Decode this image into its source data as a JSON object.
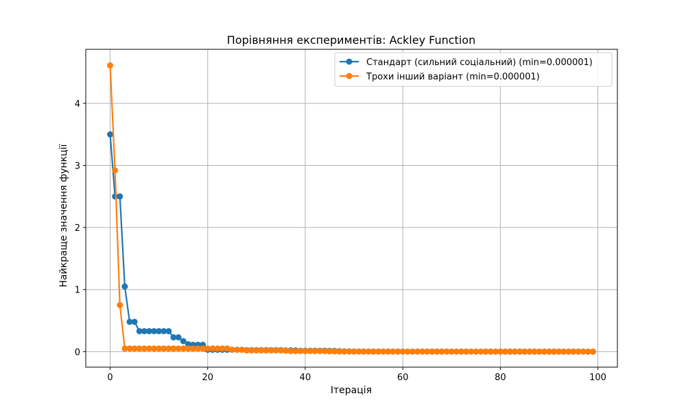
{
  "chart_data": {
    "type": "line",
    "title": "Порівняння експериментів: Ackley Function",
    "xlabel": "Ітерація",
    "ylabel": "Найкраще значення функції",
    "xlim": [
      -5,
      104
    ],
    "ylim": [
      -0.25,
      4.87
    ],
    "xticks": [
      0,
      20,
      40,
      60,
      80,
      100
    ],
    "yticks": [
      0,
      1,
      2,
      3,
      4
    ],
    "grid": true,
    "legend_position": "top-right",
    "series": [
      {
        "name": "Стандарт (сильний соціальний) (min=0.000001)",
        "color": "#1f77b4",
        "x": [
          0,
          1,
          2,
          3,
          4,
          5,
          6,
          7,
          8,
          9,
          10,
          11,
          12,
          13,
          14,
          15,
          16,
          17,
          18,
          19,
          20,
          21,
          22,
          23,
          24,
          25,
          26,
          27,
          28,
          29,
          30,
          31,
          32,
          33,
          34,
          35,
          36,
          37,
          38,
          39,
          40,
          41,
          42,
          43,
          44,
          45,
          46,
          47,
          48,
          49,
          50,
          51,
          52,
          53,
          54,
          55,
          56,
          57,
          58,
          59,
          60,
          61,
          62,
          63,
          64,
          65,
          66,
          67,
          68,
          69,
          70,
          71,
          72,
          73,
          74,
          75,
          76,
          77,
          78,
          79,
          80,
          81,
          82,
          83,
          84,
          85,
          86,
          87,
          88,
          89,
          90,
          91,
          92,
          93,
          94,
          95,
          96,
          97,
          98,
          99
        ],
        "y": [
          3.5,
          2.5,
          2.5,
          1.05,
          0.48,
          0.48,
          0.33,
          0.33,
          0.33,
          0.33,
          0.33,
          0.33,
          0.33,
          0.23,
          0.23,
          0.17,
          0.12,
          0.11,
          0.11,
          0.11,
          0.03,
          0.03,
          0.03,
          0.03,
          0.03,
          0.03,
          0.03,
          0.03,
          0.025,
          0.025,
          0.025,
          0.025,
          0.025,
          0.025,
          0.025,
          0.025,
          0.02,
          0.02,
          0.02,
          0.015,
          0.015,
          0.015,
          0.015,
          0.015,
          0.015,
          0.012,
          0.012,
          0.008,
          0.005,
          0.005,
          0.003,
          0.003,
          0.002,
          0.002,
          0.002,
          0.002,
          0.002,
          0.002,
          0.001,
          0.001,
          0.001,
          0.001,
          0.001,
          0.001,
          0.001,
          0.001,
          0.001,
          0.001,
          0.001,
          0.001,
          0.001,
          0.001,
          0.001,
          0.001,
          0.001,
          0.001,
          0.001,
          0.001,
          0.001,
          0.001,
          0.0005,
          0.0005,
          0.0005,
          0.0005,
          0.0005,
          0.0005,
          0.0005,
          0.0005,
          0.0005,
          0.0005,
          0.0005,
          0.0005,
          0.0005,
          0.0005,
          0.0005,
          0.0005,
          0.0005,
          0.0005,
          1e-06,
          1e-06
        ]
      },
      {
        "name": "Трохи інший варіант (min=0.000001)",
        "color": "#ff7f0e",
        "x": [
          0,
          1,
          2,
          3,
          4,
          5,
          6,
          7,
          8,
          9,
          10,
          11,
          12,
          13,
          14,
          15,
          16,
          17,
          18,
          19,
          20,
          21,
          22,
          23,
          24,
          25,
          26,
          27,
          28,
          29,
          30,
          31,
          32,
          33,
          34,
          35,
          36,
          37,
          38,
          39,
          40,
          41,
          42,
          43,
          44,
          45,
          46,
          47,
          48,
          49,
          50,
          51,
          52,
          53,
          54,
          55,
          56,
          57,
          58,
          59,
          60,
          61,
          62,
          63,
          64,
          65,
          66,
          67,
          68,
          69,
          70,
          71,
          72,
          73,
          74,
          75,
          76,
          77,
          78,
          79,
          80,
          81,
          82,
          83,
          84,
          85,
          86,
          87,
          88,
          89,
          90,
          91,
          92,
          93,
          94,
          95,
          96,
          97,
          98,
          99
        ],
        "y": [
          4.61,
          2.92,
          0.75,
          0.05,
          0.05,
          0.05,
          0.05,
          0.05,
          0.05,
          0.05,
          0.05,
          0.05,
          0.05,
          0.05,
          0.05,
          0.05,
          0.05,
          0.05,
          0.05,
          0.05,
          0.05,
          0.05,
          0.05,
          0.05,
          0.05,
          0.03,
          0.03,
          0.03,
          0.02,
          0.02,
          0.02,
          0.02,
          0.02,
          0.02,
          0.02,
          0.02,
          0.015,
          0.01,
          0.01,
          0.01,
          0.01,
          0.01,
          0.01,
          0.01,
          0.008,
          0.005,
          0.005,
          0.003,
          0.002,
          0.002,
          0.002,
          0.002,
          0.002,
          0.001,
          0.001,
          0.001,
          0.001,
          0.001,
          0.001,
          0.001,
          0.001,
          0.001,
          0.001,
          0.001,
          0.001,
          0.001,
          0.001,
          0.001,
          0.001,
          0.001,
          0.001,
          0.001,
          0.001,
          0.001,
          0.001,
          0.001,
          0.001,
          0.001,
          0.0005,
          0.0005,
          0.0005,
          0.0005,
          0.0005,
          0.0005,
          0.0005,
          0.0005,
          0.0005,
          0.0005,
          0.0005,
          0.0005,
          0.0005,
          0.0005,
          0.0005,
          0.0005,
          0.0005,
          0.0005,
          0.0005,
          0.0005,
          1e-06,
          1e-06
        ]
      }
    ]
  }
}
